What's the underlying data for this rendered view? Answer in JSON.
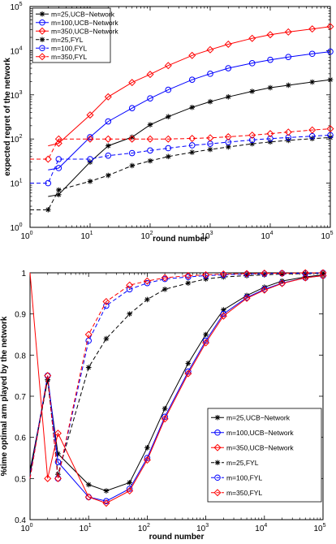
{
  "chart_data": [
    {
      "type": "line",
      "title": "",
      "xlabel": "round number",
      "ylabel": "expected regret of the network",
      "xscale": "log",
      "yscale": "log",
      "xlim": [
        1,
        100000
      ],
      "ylim": [
        1,
        100000
      ],
      "xticks": [
        {
          "base": "10",
          "exp": "0",
          "value": 1
        },
        {
          "base": "10",
          "exp": "1",
          "value": 10
        },
        {
          "base": "10",
          "exp": "2",
          "value": 100
        },
        {
          "base": "10",
          "exp": "3",
          "value": 1000
        },
        {
          "base": "10",
          "exp": "4",
          "value": 10000
        },
        {
          "base": "10",
          "exp": "5",
          "value": 100000
        }
      ],
      "yticks": [
        {
          "base": "10",
          "exp": "0",
          "value": 1
        },
        {
          "base": "10",
          "exp": "1",
          "value": 10
        },
        {
          "base": "10",
          "exp": "2",
          "value": 100
        },
        {
          "base": "10",
          "exp": "3",
          "value": 1000
        },
        {
          "base": "10",
          "exp": "4",
          "value": 10000
        },
        {
          "base": "10",
          "exp": "5",
          "value": 100000
        }
      ],
      "legend_position": "top-left",
      "series": [
        {
          "name": "m=25,UCB−Network",
          "color": "#000000",
          "dash": "solid",
          "marker": "star",
          "x": [
            1,
            2,
            3,
            10,
            20,
            50,
            100,
            200,
            500,
            1000,
            2000,
            5000,
            10000,
            20000,
            50000,
            100000
          ],
          "y": [
            null,
            5,
            5.5,
            30,
            70,
            110,
            210,
            320,
            520,
            700,
            900,
            1200,
            1450,
            1650,
            1950,
            2200
          ]
        },
        {
          "name": "m=100,UCB−Network",
          "color": "#0000ff",
          "dash": "solid",
          "marker": "circle",
          "x": [
            2,
            3,
            10,
            20,
            50,
            100,
            200,
            500,
            1000,
            2000,
            5000,
            10000,
            20000,
            50000,
            100000
          ],
          "y": [
            20,
            22,
            110,
            250,
            500,
            830,
            1300,
            2200,
            3000,
            4000,
            5200,
            6200,
            7200,
            8500,
            9500
          ]
        },
        {
          "name": "m=350,UCB−Network",
          "color": "#ff0000",
          "dash": "solid",
          "marker": "diamond",
          "x": [
            2,
            3,
            10,
            20,
            50,
            100,
            200,
            500,
            1000,
            2000,
            5000,
            10000,
            20000,
            50000,
            100000
          ],
          "y": [
            70,
            80,
            350,
            900,
            1900,
            2900,
            4600,
            7800,
            10500,
            14000,
            19000,
            23000,
            26500,
            31000,
            35000
          ]
        },
        {
          "name": "m=25,FYL",
          "color": "#000000",
          "dash": "dashed",
          "marker": "star",
          "x": [
            1,
            2,
            3,
            10,
            20,
            50,
            100,
            200,
            500,
            1000,
            2000,
            5000,
            10000,
            20000,
            50000,
            100000
          ],
          "y": [
            2.5,
            2.5,
            7,
            11,
            15,
            25,
            32,
            40,
            50,
            58,
            66,
            78,
            86,
            93,
            102,
            108
          ]
        },
        {
          "name": "m=100,FYL",
          "color": "#0000ff",
          "dash": "dashed",
          "marker": "circle",
          "x": [
            1,
            2,
            3,
            10,
            20,
            50,
            100,
            200,
            500,
            1000,
            2000,
            5000,
            10000,
            20000,
            50000,
            100000
          ],
          "y": [
            10,
            10,
            35,
            35,
            42,
            48,
            55,
            62,
            72,
            78,
            85,
            95,
            102,
            108,
            116,
            122
          ]
        },
        {
          "name": "m=350,FYL",
          "color": "#ff0000",
          "dash": "dashed",
          "marker": "diamond",
          "x": [
            1,
            2,
            3,
            10,
            20,
            50,
            100,
            200,
            500,
            1000,
            2000,
            5000,
            10000,
            20000,
            50000,
            100000
          ],
          "y": [
            35,
            35,
            100,
            100,
            100,
            100,
            100,
            100,
            103,
            106,
            112,
            122,
            132,
            143,
            160,
            170
          ]
        }
      ]
    },
    {
      "type": "line",
      "title": "",
      "xlabel": "round number",
      "ylabel": "%time optimal arm played by the network",
      "xscale": "log",
      "yscale": "linear",
      "xlim": [
        1,
        100000
      ],
      "ylim": [
        0.4,
        1.0
      ],
      "xticks": [
        {
          "base": "10",
          "exp": "0",
          "value": 1
        },
        {
          "base": "10",
          "exp": "1",
          "value": 10
        },
        {
          "base": "10",
          "exp": "2",
          "value": 100
        },
        {
          "base": "10",
          "exp": "3",
          "value": 1000
        },
        {
          "base": "10",
          "exp": "4",
          "value": 10000
        },
        {
          "base": "10",
          "exp": "5",
          "value": 100000
        }
      ],
      "yticks": [
        "0.4",
        "0.5",
        "0.6",
        "0.7",
        "0.8",
        "0.9",
        "1"
      ],
      "legend_position": "bottom-right",
      "series": [
        {
          "name": "m=25,UCB−Network",
          "color": "#000000",
          "dash": "solid",
          "marker": "star",
          "x": [
            1,
            2,
            3,
            10,
            20,
            50,
            100,
            200,
            500,
            1000,
            2000,
            5000,
            10000,
            20000,
            50000,
            100000
          ],
          "y": [
            0.52,
            0.74,
            0.56,
            0.485,
            0.47,
            0.49,
            0.575,
            0.67,
            0.78,
            0.85,
            0.91,
            0.945,
            0.965,
            0.98,
            0.99,
            0.995
          ]
        },
        {
          "name": "m=100,UCB−Network",
          "color": "#0000ff",
          "dash": "solid",
          "marker": "circle",
          "x": [
            1,
            2,
            3,
            10,
            20,
            50,
            100,
            200,
            500,
            1000,
            2000,
            5000,
            10000,
            20000,
            50000,
            100000
          ],
          "y": [
            0.51,
            0.75,
            0.54,
            0.455,
            0.445,
            0.475,
            0.55,
            0.65,
            0.76,
            0.835,
            0.9,
            0.94,
            0.96,
            0.975,
            0.988,
            0.993
          ]
        },
        {
          "name": "m=350,UCB−Network",
          "color": "#ff0000",
          "dash": "solid",
          "marker": "diamond",
          "x": [
            1,
            2,
            3,
            10,
            20,
            50,
            100,
            200,
            500,
            1000,
            2000,
            5000,
            10000,
            20000,
            50000,
            100000
          ],
          "y": [
            1.0,
            0.5,
            0.61,
            0.455,
            0.44,
            0.47,
            0.545,
            0.645,
            0.755,
            0.83,
            0.895,
            0.938,
            0.958,
            0.974,
            0.988,
            0.993
          ]
        },
        {
          "name": "m=25,FYL",
          "color": "#000000",
          "dash": "dashed",
          "marker": "star",
          "x": [
            1,
            2,
            3,
            10,
            20,
            50,
            100,
            200,
            500,
            1000,
            2000,
            5000,
            10000,
            20000,
            50000,
            100000
          ],
          "y": [
            0.51,
            0.74,
            0.51,
            0.77,
            0.84,
            0.9,
            0.935,
            0.96,
            0.975,
            0.985,
            0.99,
            0.993,
            0.995,
            0.997,
            0.998,
            0.999
          ]
        },
        {
          "name": "m=100,FYL",
          "color": "#0000ff",
          "dash": "dashed",
          "marker": "circle",
          "x": [
            1,
            2,
            3,
            10,
            20,
            50,
            100,
            200,
            500,
            1000,
            2000,
            5000,
            10000,
            20000,
            50000,
            100000
          ],
          "y": [
            0.5,
            0.75,
            0.5,
            0.835,
            0.92,
            0.96,
            0.975,
            0.985,
            0.99,
            0.993,
            0.995,
            0.997,
            0.998,
            0.999,
            0.999,
            1.0
          ]
        },
        {
          "name": "m=350,FYL",
          "color": "#ff0000",
          "dash": "dashed",
          "marker": "diamond",
          "x": [
            1,
            2,
            3,
            10,
            20,
            50,
            100,
            200,
            500,
            1000,
            2000,
            5000,
            10000,
            20000,
            50000,
            100000
          ],
          "y": [
            0.5,
            0.75,
            0.5,
            0.85,
            0.93,
            0.97,
            0.98,
            0.988,
            0.993,
            0.995,
            0.997,
            0.998,
            0.999,
            0.999,
            1.0,
            1.0
          ]
        }
      ]
    }
  ]
}
